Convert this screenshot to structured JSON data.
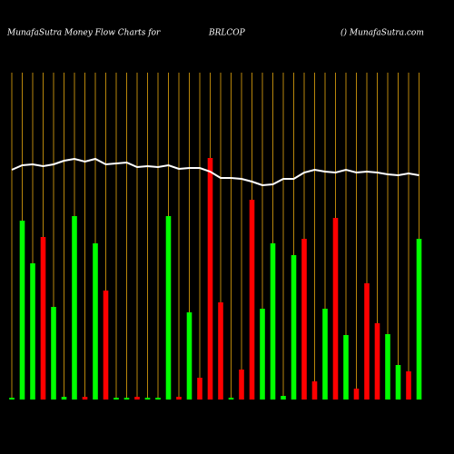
{
  "chart_data": {
    "type": "bar",
    "title": "MunafaSutra  Money Flow  Charts for",
    "subtitle": "BRLCOP",
    "annotation": "() MunafaSutra.com",
    "categories": [
      null,
      null,
      null,
      null,
      null,
      null,
      null,
      null,
      null,
      null,
      null,
      null,
      null,
      null,
      null,
      null,
      null,
      null,
      null,
      null,
      null,
      null,
      null,
      null,
      null,
      null,
      null,
      null,
      null,
      null,
      null,
      null,
      null,
      null,
      null,
      null,
      null,
      null,
      null,
      null
    ],
    "values": [
      2,
      197,
      150,
      179,
      102,
      3,
      202,
      3,
      172,
      120,
      2,
      2,
      3,
      2,
      2,
      202,
      3,
      96,
      24,
      266,
      107,
      2,
      33,
      220,
      100,
      172,
      4,
      159,
      177,
      20,
      100,
      200,
      71,
      12,
      128,
      84,
      72,
      38,
      31,
      177
    ],
    "colors": [
      "#00ff00",
      "#00ff00",
      "#00ff00",
      "#ff0000",
      "#00ff00",
      "#00ff00",
      "#00ff00",
      "#ff0000",
      "#00ff00",
      "#ff0000",
      "#00ff00",
      "#00ff00",
      "#ff0000",
      "#00ff00",
      "#00ff00",
      "#00ff00",
      "#ff0000",
      "#00ff00",
      "#ff0000",
      "#ff0000",
      "#ff0000",
      "#00ff00",
      "#ff0000",
      "#ff0000",
      "#00ff00",
      "#00ff00",
      "#00ff00",
      "#00ff00",
      "#ff0000",
      "#ff0000",
      "#00ff00",
      "#ff0000",
      "#00ff00",
      "#ff0000",
      "#ff0000",
      "#ff0000",
      "#00ff00",
      "#00ff00",
      "#ff0000",
      "#00ff00"
    ],
    "line": {
      "color": "#ffffff",
      "values": [
        253,
        258,
        259,
        257,
        259,
        263,
        265,
        262,
        265,
        259,
        260,
        261,
        256,
        257,
        256,
        258,
        254,
        255,
        255,
        251,
        244,
        244,
        243,
        240,
        236,
        237,
        243,
        243,
        250,
        253,
        251,
        250,
        253,
        250,
        251,
        250,
        248,
        247,
        249,
        247
      ]
    },
    "grid_color": "#b8860b",
    "ylim": [
      0,
      360
    ]
  }
}
